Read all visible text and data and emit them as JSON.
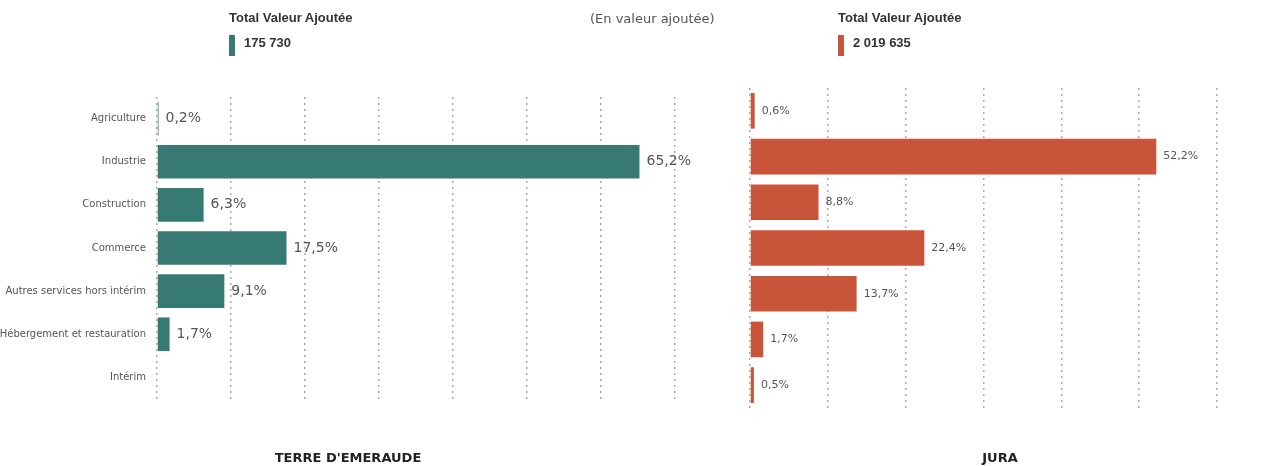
{
  "chart_data": [
    {
      "type": "bar",
      "orientation": "horizontal",
      "title": "TERRE D'EMERAUDE",
      "subtitle": "Total Valeur Ajoutée",
      "annotations": [
        "175 730",
        "(En valeur ajoutée)"
      ],
      "categories": [
        "Agriculture",
        "Industrie",
        "Construction",
        "Commerce",
        "Autres services hors intérim",
        "Hébergement et restauration",
        "Intérim"
      ],
      "series": [
        {
          "color": "#367a73",
          "values": [
            0.2,
            65.2,
            6.3,
            17.5,
            9.1,
            1.7,
            null
          ],
          "value_labels": [
            "0,2%",
            "65,2%",
            "6,3%",
            "17,5%",
            "9,1%",
            "1,7%",
            null
          ]
        }
      ],
      "grid": "x",
      "legend": false,
      "tick_labels": "y"
    },
    {
      "type": "bar",
      "orientation": "horizontal",
      "title": "JURA",
      "subtitle": "Total Valeur Ajoutée",
      "annotations": [
        "2 019 635"
      ],
      "categories": [
        null,
        null,
        null,
        null,
        null,
        null,
        null
      ],
      "series": [
        {
          "color": "#c8553a",
          "values": [
            0.6,
            52.2,
            8.8,
            22.4,
            13.7,
            1.7,
            0.5
          ],
          "value_labels": [
            "0,6%",
            "52,2%",
            "8,8%",
            "22,4%",
            "13,7%",
            "1,7%",
            "0,5%"
          ]
        }
      ],
      "grid": "x",
      "legend": false,
      "tick_labels": false
    }
  ]
}
